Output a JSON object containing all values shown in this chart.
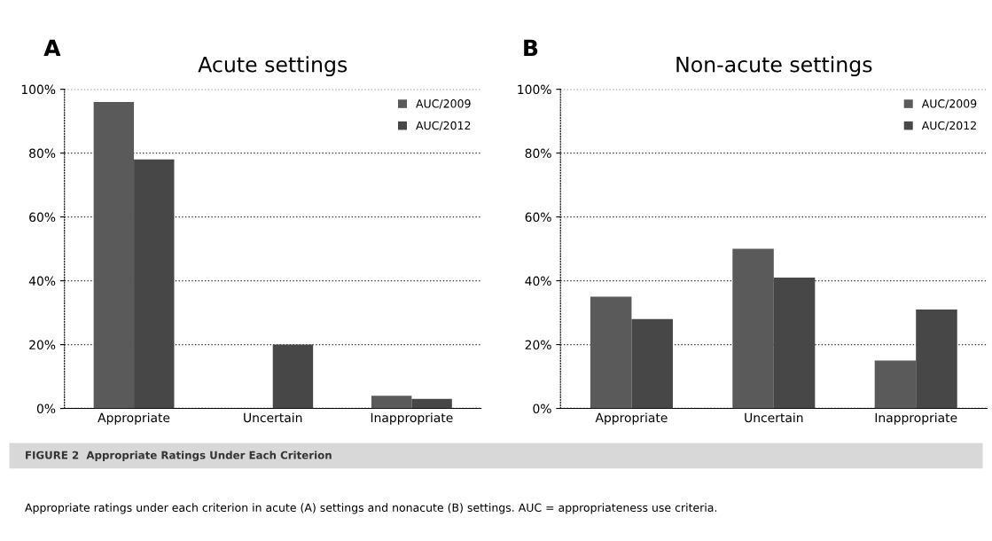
{
  "chart_data": [
    {
      "type": "bar",
      "title": "Acute settings",
      "categories": [
        "Appropriate",
        "Uncertain",
        "Inappropriate"
      ],
      "series": [
        {
          "name": "AUC/2009",
          "color": "#5a5a5a",
          "values": [
            96,
            0,
            4
          ]
        },
        {
          "name": "AUC/2012",
          "color": "#474747",
          "values": [
            78,
            20,
            3
          ]
        }
      ],
      "ylim": [
        0,
        100
      ],
      "yticks": [
        {
          "value": 0,
          "label": "0%"
        },
        {
          "value": 20,
          "label": "20%"
        },
        {
          "value": 40,
          "label": "40%"
        },
        {
          "value": 60,
          "label": "60%"
        },
        {
          "value": 80,
          "label": "80%"
        },
        {
          "value": 100,
          "label": "100%"
        }
      ],
      "grid": "y",
      "legend": "top right",
      "annotations": [
        "A",
        "FIGURE 2  Appropriate Ratings Under Each Criterion",
        "Appropriate ratings under each criterion in acute (A) settings and nonacute (B) settings. AUC = appropriateness use criteria."
      ]
    },
    {
      "type": "bar",
      "title": "Non-acute settings",
      "categories": [
        "Appropriate",
        "Uncertain",
        "Inappropriate"
      ],
      "series": [
        {
          "name": "AUC/2009",
          "color": "#5a5a5a",
          "values": [
            35,
            50,
            15
          ]
        },
        {
          "name": "AUC/2012",
          "color": "#474747",
          "values": [
            28,
            41,
            31
          ]
        }
      ],
      "ylim": [
        0,
        100
      ],
      "yticks": [
        {
          "value": 0,
          "label": "0%"
        },
        {
          "value": 20,
          "label": "20%"
        },
        {
          "value": 40,
          "label": "40%"
        },
        {
          "value": 60,
          "label": "60%"
        },
        {
          "value": 80,
          "label": "80%"
        },
        {
          "value": 100,
          "label": "100%"
        }
      ],
      "grid": "y",
      "legend": "top right",
      "annotations": [
        "B"
      ]
    }
  ]
}
